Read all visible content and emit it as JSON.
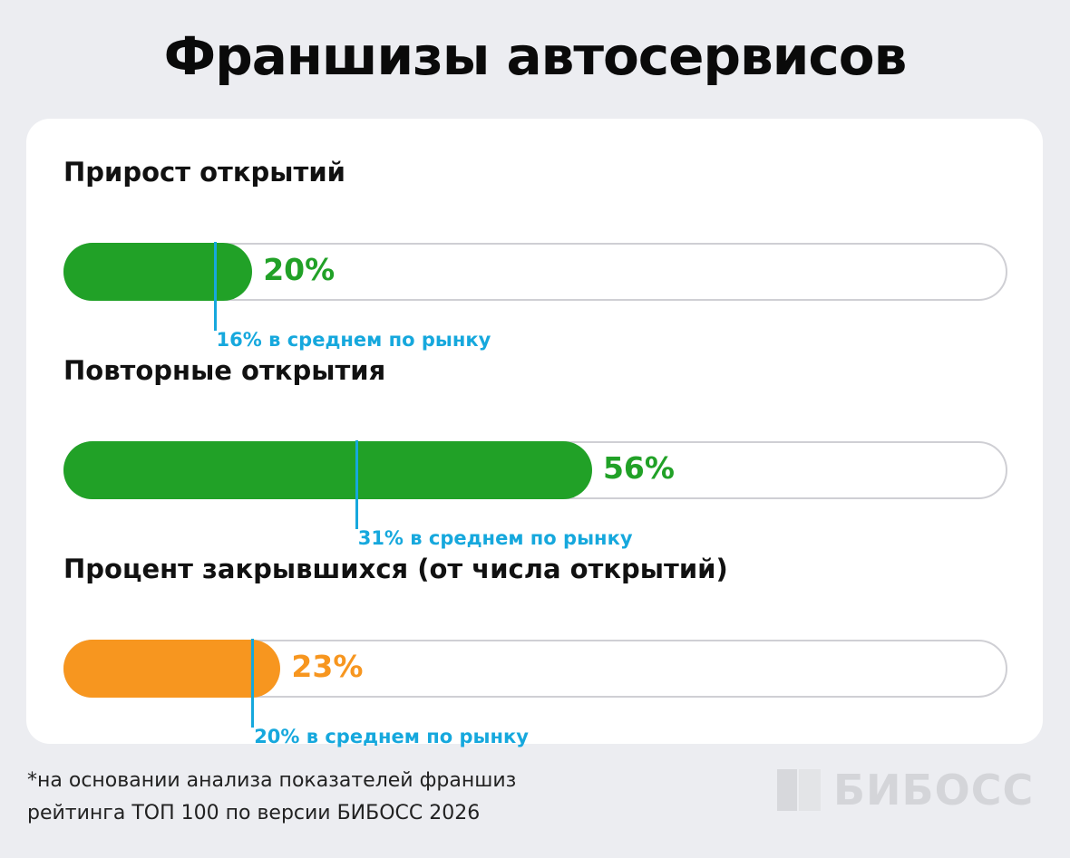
{
  "title": "Франшизы автосервисов",
  "chart_data": {
    "type": "bar",
    "orientation": "horizontal",
    "unit": "%",
    "xlim": [
      0,
      100
    ],
    "items": [
      {
        "label": "Прирост открытий",
        "value": 20,
        "value_label": "20%",
        "average": 16,
        "average_label": "16% в среднем по рынку",
        "color": "#21a127"
      },
      {
        "label": "Повторные открытия",
        "value": 56,
        "value_label": "56%",
        "average": 31,
        "average_label": "31% в среднем по рынку",
        "color": "#21a127"
      },
      {
        "label": "Процент закрывшихся (от числа открытий)",
        "value": 23,
        "value_label": "23%",
        "average": 20,
        "average_label": "20% в среднем по рынку",
        "color": "#f7961f"
      }
    ],
    "marker_color": "#16a8dd"
  },
  "footnote": {
    "line1": "*на основании анализа показателей франшиз",
    "line2": "рейтинга ТОП 100 по версии БИБОСС 2026"
  },
  "logo": {
    "text": "БИБОСС"
  }
}
